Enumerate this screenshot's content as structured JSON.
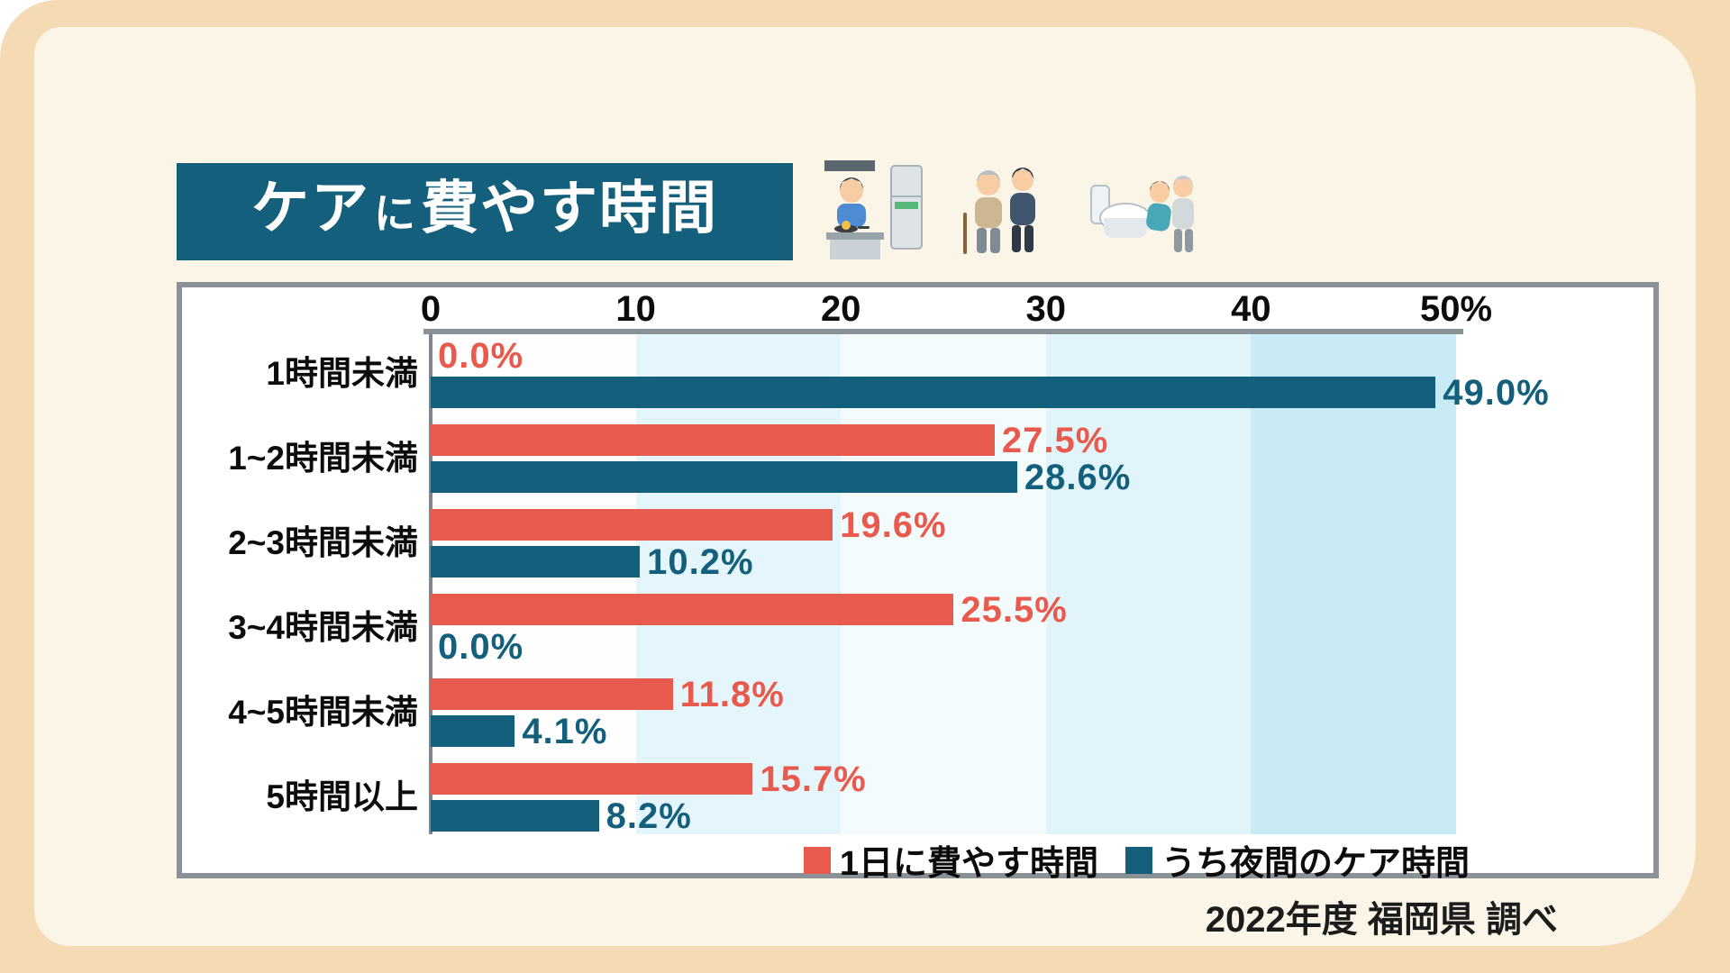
{
  "title": {
    "part_main": "ケア",
    "part_particle": "に",
    "part_rest": "費やす時間"
  },
  "source_note": "2022年度 福岡県 調べ",
  "illustrations": [
    "cooking",
    "walking-assist",
    "toilet-assist"
  ],
  "chart_data": {
    "type": "bar",
    "orientation": "horizontal",
    "title": "ケアに費やす時間",
    "categories": [
      "1時間未満",
      "1~2時間未満",
      "2~3時間未満",
      "3~4時間未満",
      "4~5時間未満",
      "5時間以上"
    ],
    "series": [
      {
        "name": "1日に費やす時間",
        "color": "#E85A4D",
        "values": [
          0.0,
          27.5,
          19.6,
          25.5,
          11.8,
          15.7
        ],
        "labels": [
          "0.0%",
          "27.5%",
          "19.6%",
          "25.5%",
          "11.8%",
          "15.7%"
        ]
      },
      {
        "name": "うち夜間のケア時間",
        "color": "#135F7C",
        "values": [
          49.0,
          28.6,
          10.2,
          0.0,
          4.1,
          8.2
        ],
        "labels": [
          "49.0%",
          "28.6%",
          "10.2%",
          "0.0%",
          "4.1%",
          "8.2%"
        ]
      }
    ],
    "x_axis": {
      "max": 50,
      "ticks": [
        0,
        10,
        20,
        30,
        40,
        50
      ],
      "tick_labels": [
        "0",
        "10",
        "20",
        "30",
        "40",
        "50%"
      ]
    },
    "legend": [
      "1日に費やす時間",
      "うち夜間のケア時間"
    ],
    "legend_position": "bottom-right",
    "grid_band_colors": [
      "#FEFEFE",
      "#E4F6FB",
      "#F3FBFD",
      "#E0F4FA",
      "#C9EBF5"
    ]
  }
}
